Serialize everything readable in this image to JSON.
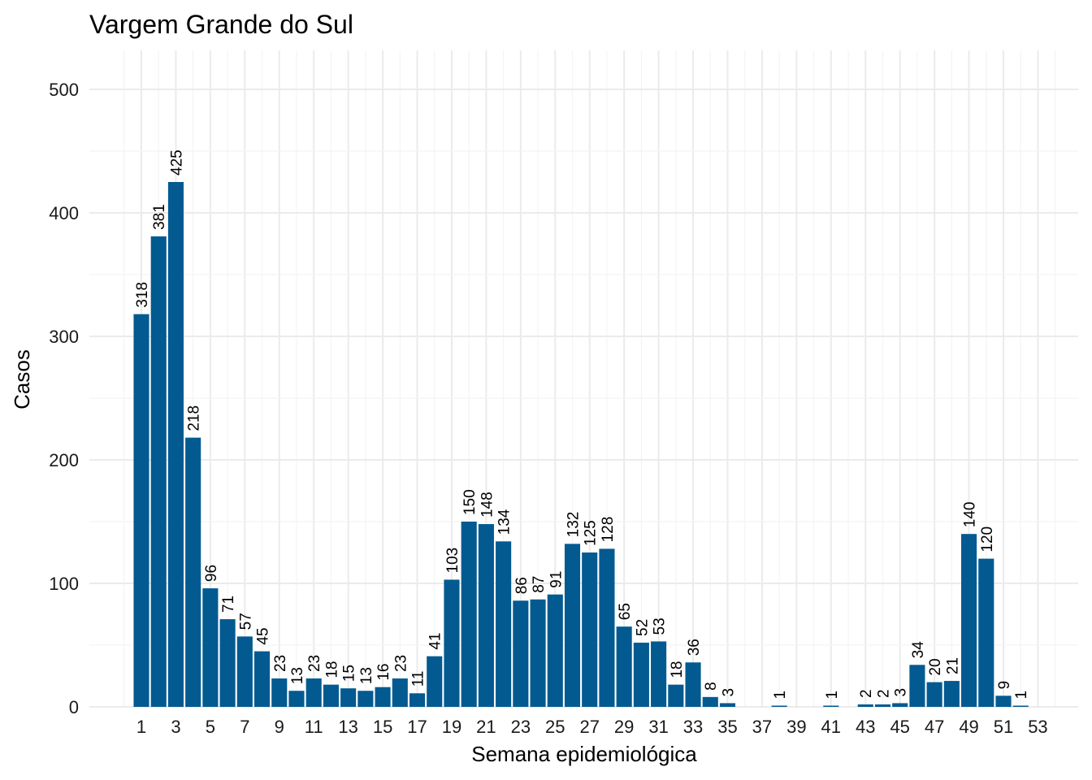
{
  "chart_data": {
    "type": "bar",
    "title": "Vargem Grande do Sul",
    "xlabel": "Semana epidemiológica",
    "ylabel": "Casos",
    "ylim": [
      0,
      525
    ],
    "yticks": [
      0,
      100,
      200,
      300,
      400,
      500
    ],
    "xlim": [
      0,
      54
    ],
    "xticks": [
      1,
      3,
      5,
      7,
      9,
      11,
      13,
      15,
      17,
      19,
      21,
      23,
      25,
      27,
      29,
      31,
      33,
      35,
      37,
      39,
      41,
      43,
      45,
      47,
      49,
      51,
      53
    ],
    "x": [
      1,
      2,
      3,
      4,
      5,
      6,
      7,
      8,
      9,
      10,
      11,
      12,
      13,
      14,
      15,
      16,
      17,
      18,
      19,
      20,
      21,
      22,
      23,
      24,
      25,
      26,
      27,
      28,
      29,
      30,
      31,
      32,
      33,
      34,
      35,
      38,
      41,
      43,
      44,
      45,
      46,
      47,
      48,
      49,
      50,
      51,
      52
    ],
    "values": [
      318,
      381,
      425,
      218,
      96,
      71,
      57,
      45,
      23,
      13,
      23,
      18,
      15,
      13,
      16,
      23,
      11,
      41,
      103,
      150,
      148,
      134,
      86,
      87,
      91,
      132,
      125,
      128,
      65,
      52,
      53,
      18,
      36,
      8,
      3,
      1,
      1,
      2,
      2,
      3,
      34,
      20,
      21,
      140,
      120,
      9,
      1
    ],
    "bar_color": "#035a91",
    "grid": true,
    "legend": "none"
  }
}
